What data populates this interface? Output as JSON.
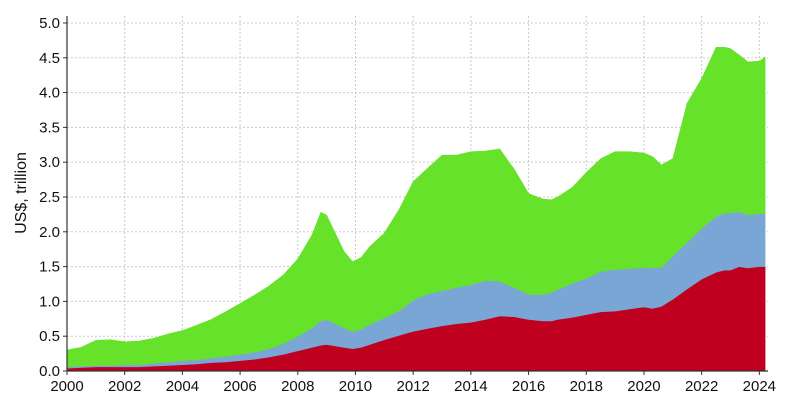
{
  "chart_data": {
    "type": "area",
    "stacked": true,
    "title": "",
    "xlabel": "",
    "ylabel": "US$, trillion",
    "xlim": [
      2000,
      2024.3
    ],
    "ylim": [
      0,
      5.1
    ],
    "grid": true,
    "legend": "none",
    "x_ticks": [
      "2000",
      "2002",
      "2004",
      "2006",
      "2008",
      "2010",
      "2012",
      "2014",
      "2016",
      "2018",
      "2020",
      "2022",
      "2024"
    ],
    "y_ticks": [
      "0.0",
      "0.5",
      "1.0",
      "1.5",
      "2.0",
      "2.5",
      "3.0",
      "3.5",
      "4.0",
      "4.5",
      "5.0"
    ],
    "x": [
      2000,
      2000.5,
      2001,
      2001.5,
      2002,
      2002.5,
      2003,
      2003.5,
      2004,
      2004.5,
      2005,
      2005.5,
      2006,
      2006.5,
      2007,
      2007.5,
      2008,
      2008.5,
      2008.8,
      2009,
      2009.3,
      2009.6,
      2009.9,
      2010.2,
      2010.5,
      2011,
      2011.5,
      2012,
      2012.5,
      2013,
      2013.5,
      2014,
      2014.5,
      2015,
      2015.5,
      2016,
      2016.5,
      2016.8,
      2017,
      2017.5,
      2018,
      2018.5,
      2019,
      2019.5,
      2020,
      2020.3,
      2020.6,
      2021,
      2021.5,
      2022,
      2022.5,
      2022.8,
      2023,
      2023.3,
      2023.6,
      2024,
      2024.2
    ],
    "series": [
      {
        "color": "#c0001f",
        "values": [
          0.04,
          0.05,
          0.06,
          0.06,
          0.06,
          0.06,
          0.07,
          0.08,
          0.09,
          0.1,
          0.12,
          0.13,
          0.15,
          0.17,
          0.2,
          0.24,
          0.29,
          0.34,
          0.37,
          0.38,
          0.36,
          0.34,
          0.32,
          0.34,
          0.38,
          0.45,
          0.51,
          0.57,
          0.61,
          0.65,
          0.68,
          0.7,
          0.74,
          0.79,
          0.78,
          0.74,
          0.72,
          0.72,
          0.74,
          0.77,
          0.81,
          0.85,
          0.86,
          0.89,
          0.92,
          0.9,
          0.93,
          1.03,
          1.18,
          1.32,
          1.42,
          1.45,
          1.45,
          1.5,
          1.48,
          1.5,
          1.5
        ]
      },
      {
        "color": "#7aa6d6",
        "values": [
          0.02,
          0.02,
          0.02,
          0.02,
          0.03,
          0.03,
          0.04,
          0.05,
          0.06,
          0.06,
          0.07,
          0.08,
          0.09,
          0.1,
          0.12,
          0.15,
          0.21,
          0.28,
          0.35,
          0.36,
          0.32,
          0.28,
          0.25,
          0.26,
          0.29,
          0.31,
          0.35,
          0.45,
          0.5,
          0.5,
          0.52,
          0.54,
          0.56,
          0.5,
          0.42,
          0.36,
          0.38,
          0.41,
          0.43,
          0.49,
          0.52,
          0.58,
          0.6,
          0.58,
          0.57,
          0.58,
          0.56,
          0.62,
          0.67,
          0.73,
          0.8,
          0.82,
          0.82,
          0.79,
          0.76,
          0.76,
          0.76
        ]
      },
      {
        "color": "#66e22a",
        "values": [
          0.24,
          0.27,
          0.36,
          0.37,
          0.33,
          0.34,
          0.36,
          0.4,
          0.43,
          0.5,
          0.55,
          0.64,
          0.73,
          0.82,
          0.9,
          0.99,
          1.11,
          1.34,
          1.56,
          1.5,
          1.3,
          1.1,
          1.0,
          1.03,
          1.12,
          1.22,
          1.45,
          1.7,
          1.8,
          1.95,
          1.9,
          1.91,
          1.86,
          1.9,
          1.7,
          1.45,
          1.37,
          1.33,
          1.33,
          1.37,
          1.52,
          1.62,
          1.69,
          1.68,
          1.64,
          1.6,
          1.47,
          1.4,
          2.0,
          2.15,
          2.43,
          2.38,
          2.36,
          2.25,
          2.2,
          2.19,
          2.25
        ]
      }
    ]
  }
}
